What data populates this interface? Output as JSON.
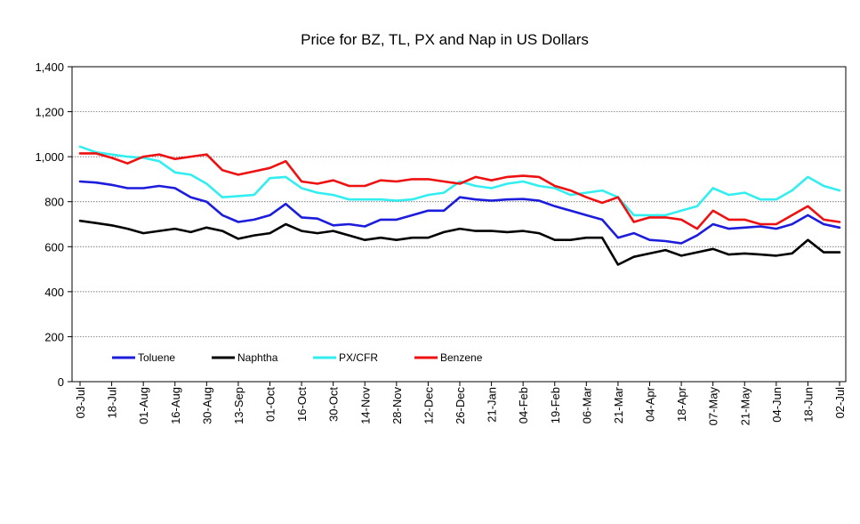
{
  "chart_data": {
    "type": "line",
    "title": "Price for BZ, TL, PX and Nap in US Dollars",
    "xlabel": "",
    "ylabel": "",
    "ylim": [
      0,
      1400
    ],
    "yticks": [
      0,
      200,
      400,
      600,
      800,
      1000,
      1200,
      1400
    ],
    "ytick_labels": [
      "0",
      "200",
      "400",
      "600",
      "800",
      "1,000",
      "1,200",
      "1,400"
    ],
    "grid": "horizontal",
    "legend_position": "bottom-left-inside",
    "x_tick_labels": [
      "03-Jul",
      "18-Jul",
      "01-Aug",
      "16-Aug",
      "30-Aug",
      "13-Sep",
      "01-Oct",
      "16-Oct",
      "30-Oct",
      "14-Nov",
      "28-Nov",
      "12-Dec",
      "26-Dec",
      "21-Jan",
      "04-Feb",
      "19-Feb",
      "06-Mar",
      "21-Mar",
      "04-Apr",
      "18-Apr",
      "07-May",
      "21-May",
      "04-Jun",
      "18-Jun",
      "02-Jul"
    ],
    "x": [
      0,
      0.5,
      1,
      1.5,
      2,
      2.5,
      3,
      3.5,
      4,
      4.5,
      5,
      5.5,
      6,
      6.5,
      7,
      7.5,
      8,
      8.5,
      9,
      9.5,
      10,
      10.5,
      11,
      11.5,
      12,
      12.5,
      13,
      13.5,
      14,
      14.5,
      15,
      15.5,
      16,
      16.5,
      17,
      17.5,
      18,
      18.5,
      19,
      19.5,
      20,
      20.5,
      21,
      21.5,
      22,
      22.5,
      23,
      23.5,
      24
    ],
    "series": [
      {
        "name": "Toluene",
        "color": "#1c1cdc",
        "values": [
          890,
          885,
          875,
          860,
          860,
          870,
          860,
          820,
          800,
          740,
          710,
          720,
          740,
          790,
          730,
          725,
          695,
          700,
          690,
          720,
          720,
          740,
          760,
          760,
          820,
          810,
          805,
          810,
          812,
          805,
          780,
          760,
          740,
          720,
          640,
          660,
          630,
          625,
          615,
          650,
          700,
          680,
          685,
          690,
          680,
          700,
          740,
          700,
          685
        ]
      },
      {
        "name": "Naphtha",
        "color": "#000000",
        "values": [
          715,
          705,
          695,
          680,
          660,
          670,
          680,
          665,
          685,
          670,
          635,
          650,
          660,
          700,
          670,
          660,
          670,
          650,
          630,
          640,
          630,
          640,
          640,
          665,
          680,
          670,
          670,
          665,
          670,
          660,
          630,
          630,
          640,
          640,
          520,
          555,
          570,
          585,
          560,
          575,
          590,
          565,
          570,
          565,
          560,
          570,
          630,
          575,
          575
        ]
      },
      {
        "name": "PX/CFR",
        "color": "#33eef0",
        "values": [
          1045,
          1020,
          1010,
          1000,
          995,
          980,
          930,
          920,
          880,
          820,
          825,
          830,
          905,
          910,
          860,
          840,
          830,
          810,
          810,
          810,
          805,
          810,
          830,
          840,
          890,
          870,
          860,
          880,
          890,
          870,
          860,
          830,
          840,
          850,
          820,
          740,
          740,
          740,
          760,
          780,
          860,
          830,
          840,
          810,
          810,
          850,
          910,
          870,
          850
        ]
      },
      {
        "name": "Benzene",
        "color": "#ee1111",
        "values": [
          1015,
          1015,
          995,
          970,
          1000,
          1010,
          990,
          1000,
          1010,
          940,
          920,
          935,
          950,
          980,
          890,
          880,
          895,
          870,
          870,
          895,
          890,
          900,
          900,
          890,
          880,
          910,
          895,
          910,
          915,
          910,
          870,
          850,
          820,
          795,
          820,
          710,
          730,
          730,
          720,
          680,
          760,
          720,
          720,
          700,
          700,
          740,
          780,
          720,
          710
        ]
      }
    ]
  }
}
